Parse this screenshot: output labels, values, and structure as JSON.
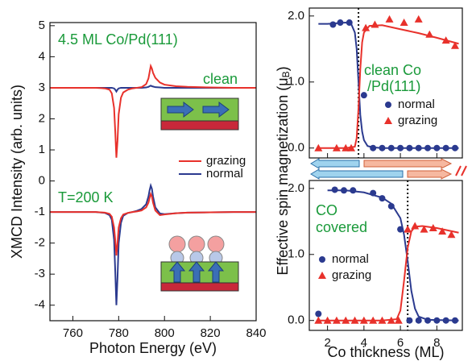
{
  "chart_data": [
    {
      "type": "line",
      "xlabel": "Photon Energy  (eV)",
      "ylabel": "XMCD Intensity  (arb. units)",
      "annotations": [
        "4.5 ML Co/Pd(111)",
        "clean",
        "T=200 K"
      ],
      "xlim": [
        750,
        840
      ],
      "xticks": [
        760,
        780,
        800,
        820,
        840
      ],
      "ylim": [
        -4.5,
        5.1
      ],
      "yticks": [
        -4,
        -3,
        -2,
        -1,
        0,
        1,
        2,
        3,
        4,
        5
      ],
      "x": [
        750,
        760,
        770,
        774,
        776,
        777,
        778,
        778.5,
        779,
        779.5,
        780,
        781,
        782,
        784,
        786,
        788,
        790,
        792,
        793,
        793.5,
        794,
        794.5,
        795,
        796,
        798,
        800,
        805,
        810,
        820,
        830,
        840
      ],
      "series": [
        {
          "name": "normal",
          "color": "#2b3a8f",
          "values": [
            3,
            3,
            3,
            3,
            3,
            3,
            2.98,
            2.94,
            2.88,
            2.94,
            2.98,
            3,
            3,
            3,
            3,
            3,
            3,
            3.01,
            3.03,
            3.05,
            3.07,
            3.05,
            3.04,
            3.02,
            3.01,
            3,
            3,
            3,
            3,
            3,
            3
          ]
        },
        {
          "name": "grazing",
          "color": "#e8312b",
          "values": [
            3,
            3,
            3,
            2.98,
            2.94,
            2.82,
            2.35,
            1.6,
            0.75,
            1.3,
            2.15,
            2.68,
            2.85,
            2.94,
            2.98,
            3,
            3.02,
            3.12,
            3.3,
            3.5,
            3.7,
            3.62,
            3.48,
            3.32,
            3.17,
            3.1,
            3.05,
            3.03,
            3.01,
            3,
            3
          ]
        },
        {
          "name": "normal",
          "color": "#2b3a8f",
          "values": [
            -1,
            -1,
            -1,
            -1.03,
            -1.1,
            -1.25,
            -1.9,
            -2.9,
            -4.0,
            -3.1,
            -2.0,
            -1.35,
            -1.12,
            -1.03,
            -1.0,
            -0.96,
            -0.9,
            -0.75,
            -0.5,
            -0.3,
            -0.15,
            -0.25,
            -0.5,
            -0.85,
            -1.05,
            -1.07,
            -1.04,
            -1.02,
            -1.01,
            -1,
            -1
          ]
        },
        {
          "name": "grazing",
          "color": "#e8312b",
          "values": [
            -1,
            -1,
            -1,
            -1.02,
            -1.06,
            -1.15,
            -1.5,
            -1.9,
            -2.4,
            -2.0,
            -1.5,
            -1.2,
            -1.08,
            -1.03,
            -1.0,
            -0.98,
            -0.95,
            -0.85,
            -0.7,
            -0.55,
            -0.42,
            -0.5,
            -0.7,
            -0.95,
            -1.1,
            -1.08,
            -1.04,
            -1.02,
            -1.01,
            -1,
            -1
          ]
        }
      ]
    },
    {
      "type": "scatter",
      "ylabel": {
        "main": "Effective spin magnetization  (μ",
        "sub": "B",
        "end": ")"
      },
      "annotations": [
        "clean Co",
        "/Pd(111)"
      ],
      "xlim": [
        1.0,
        9.4
      ],
      "xticks": [
        2,
        4,
        6,
        8
      ],
      "ylim": [
        -0.15,
        2.12
      ],
      "yticks": [
        {
          "value": 0,
          "label": "0.0"
        },
        {
          "value": 1,
          "label": "1.0"
        },
        {
          "value": 2,
          "label": "2.0"
        }
      ],
      "vline": 3.7,
      "series": [
        {
          "name": "normal",
          "color": "#2b3a8f",
          "marker": "circle",
          "x": [
            2.3,
            2.7,
            3.2,
            4.0,
            4.5,
            5,
            5.5,
            6,
            6.5,
            7,
            7.5,
            8,
            8.5,
            9
          ],
          "values": [
            1.87,
            1.9,
            1.9,
            0.8,
            0,
            0,
            0,
            0,
            0,
            0,
            0,
            0,
            0,
            0
          ]
        },
        {
          "name": "grazing",
          "color": "#e8312b",
          "marker": "triangle",
          "x": [
            1.5,
            2.5,
            3,
            3.3,
            4.1,
            4.6,
            5.4,
            6.2,
            7.0,
            7.6,
            8.5,
            9.0
          ],
          "values": [
            0,
            0,
            0,
            0,
            1.82,
            1.87,
            1.95,
            1.9,
            1.95,
            1.72,
            1.63,
            1.55
          ]
        },
        {
          "color": "#2b3a8f",
          "x": [
            1.5,
            2,
            2.5,
            3,
            3.3,
            3.5,
            3.6,
            3.7,
            3.8,
            3.9,
            4.0,
            4.2,
            4.5,
            5,
            9.2
          ],
          "values": [
            1.88,
            1.88,
            1.89,
            1.9,
            1.88,
            1.75,
            1.5,
            1.0,
            0.5,
            0.25,
            0.12,
            0.03,
            0.01,
            0,
            0
          ]
        },
        {
          "color": "#e8312b",
          "x": [
            1.5,
            3,
            3.5,
            3.6,
            3.7,
            3.8,
            3.9,
            4.0,
            4.3,
            5,
            6,
            7,
            8,
            9.2
          ],
          "values": [
            0,
            0,
            0.02,
            0.15,
            0.6,
            1.2,
            1.6,
            1.75,
            1.85,
            1.86,
            1.8,
            1.74,
            1.67,
            1.58
          ]
        }
      ]
    },
    {
      "type": "scatter",
      "xlabel": "Co thickness  (ML)",
      "annotations": [
        "CO",
        "covered"
      ],
      "xlim": [
        1.0,
        9.4
      ],
      "xticks": [
        2,
        4,
        6,
        8
      ],
      "ylim": [
        -0.15,
        2.12
      ],
      "yticks": [
        {
          "value": 0,
          "label": "0.0"
        },
        {
          "value": 1,
          "label": "1.0"
        },
        {
          "value": 2,
          "label": "2.0"
        }
      ],
      "vline": 6.4,
      "series": [
        {
          "name": "normal",
          "color": "#2b3a8f",
          "marker": "circle",
          "x": [
            1.5,
            2.4,
            2.9,
            3.4,
            4.5,
            5.0,
            5.5,
            6.0,
            6.5,
            7.0,
            7.5,
            8.0,
            8.5,
            9.0
          ],
          "values": [
            0.1,
            1.98,
            1.97,
            1.97,
            1.93,
            1.85,
            1.73,
            1.38,
            0,
            0,
            0,
            0,
            0,
            0
          ]
        },
        {
          "name": "grazing",
          "color": "#e8312b",
          "marker": "triangle",
          "x": [
            1.5,
            2,
            2.5,
            3,
            3.5,
            4,
            4.5,
            5,
            5.5,
            5.9,
            6.4,
            6.8,
            7.3,
            7.8,
            8.3,
            8.8
          ],
          "values": [
            0,
            0,
            0,
            0,
            0,
            0,
            0,
            0,
            0,
            0,
            1.38,
            1.43,
            1.38,
            1.4,
            1.35,
            1.3
          ]
        },
        {
          "color": "#2b3a8f",
          "x": [
            2,
            3,
            4,
            5,
            5.5,
            6,
            6.2,
            6.4,
            6.6,
            6.8,
            7,
            7.5,
            9.2
          ],
          "values": [
            1.97,
            1.97,
            1.94,
            1.86,
            1.77,
            1.55,
            1.3,
            0.9,
            0.45,
            0.18,
            0.06,
            0.01,
            0
          ]
        },
        {
          "color": "#e8312b",
          "x": [
            1.5,
            5,
            5.8,
            6.0,
            6.2,
            6.4,
            6.6,
            6.8,
            7.2,
            8,
            9.2
          ],
          "values": [
            0,
            0,
            0.02,
            0.15,
            0.6,
            1.1,
            1.35,
            1.42,
            1.43,
            1.4,
            1.33
          ]
        }
      ]
    }
  ]
}
